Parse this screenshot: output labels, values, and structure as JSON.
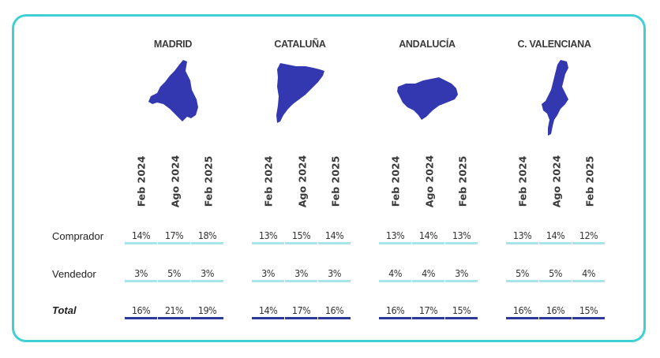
{
  "colors": {
    "frame": "#3fd0d4",
    "map_fill": "#3338b0",
    "bar_light": "#a6e6ea",
    "bar_dark": "#2e3a9b"
  },
  "chart_data": {
    "type": "table",
    "periods": [
      "Feb 2024",
      "Ago 2024",
      "Feb 2025"
    ],
    "row_labels": [
      "Comprador",
      "Vendedor",
      "Total"
    ],
    "regions": [
      {
        "name": "MADRID",
        "Comprador": [
          "14%",
          "17%",
          "18%"
        ],
        "Vendedor": [
          "3%",
          "5%",
          "3%"
        ],
        "Total": [
          "16%",
          "21%",
          "19%"
        ]
      },
      {
        "name": "CATALUÑA",
        "Comprador": [
          "13%",
          "15%",
          "14%"
        ],
        "Vendedor": [
          "3%",
          "3%",
          "3%"
        ],
        "Total": [
          "14%",
          "17%",
          "16%"
        ]
      },
      {
        "name": "ANDALUCÍA",
        "Comprador": [
          "13%",
          "14%",
          "13%"
        ],
        "Vendedor": [
          "4%",
          "4%",
          "3%"
        ],
        "Total": [
          "16%",
          "17%",
          "15%"
        ]
      },
      {
        "name": "C. VALENCIANA",
        "Comprador": [
          "13%",
          "14%",
          "12%"
        ],
        "Vendedor": [
          "5%",
          "5%",
          "4%"
        ],
        "Total": [
          "16%",
          "16%",
          "15%"
        ]
      }
    ]
  }
}
